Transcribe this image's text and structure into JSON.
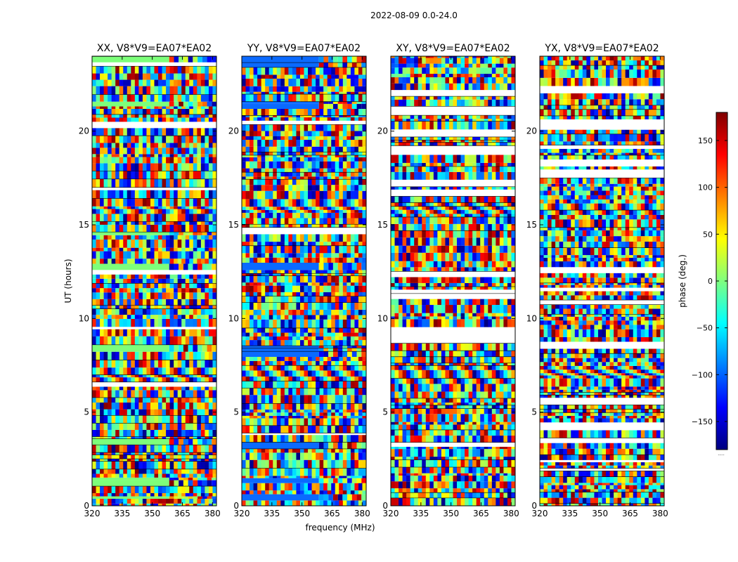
{
  "figure": {
    "suptitle": "2022-08-09 0.0-24.0",
    "xlabel": "frequency (MHz)",
    "ylabel": "UT (hours)"
  },
  "colorbar": {
    "label": "phase (deg.)",
    "range": [
      -180,
      180
    ],
    "ticks": [
      150,
      100,
      50,
      0,
      -50,
      -100,
      -150
    ],
    "tick_labels": [
      "150",
      "100",
      "50",
      "0",
      "−50",
      "−100",
      "−150"
    ],
    "footer": "....."
  },
  "chart_data": [
    {
      "type": "heatmap",
      "title": "XX, V8*V9=EA07*EA02",
      "xlim": [
        320,
        382
      ],
      "ylim": [
        0,
        24
      ],
      "xticks": [
        320,
        335,
        350,
        365,
        380
      ],
      "xtick_labels": [
        "320",
        "335",
        "350",
        "365",
        "380"
      ],
      "yticks": [
        0,
        5,
        10,
        15,
        20
      ],
      "ytick_labels": [
        "0",
        "5",
        "10",
        "15",
        "20"
      ],
      "value": "phase (deg.)",
      "colormap": "jet",
      "clim": [
        -180,
        180
      ],
      "calibrated_rows_hours": [
        [
          23.3,
          24
        ],
        [
          21.3,
          21.7
        ],
        [
          14.4,
          14.8
        ],
        [
          12.5,
          12.9
        ],
        [
          8.1,
          8.5
        ],
        [
          3.2,
          3.5
        ],
        [
          1.1,
          1.5
        ],
        [
          0.3,
          0.5
        ]
      ],
      "fringe_bands_hours": [
        [
          15.6,
          16.2
        ],
        [
          6.6,
          7.5
        ]
      ]
    },
    {
      "type": "heatmap",
      "title": "YY, V8*V9=EA07*EA02",
      "xlim": [
        320,
        382
      ],
      "ylim": [
        0,
        24
      ],
      "xticks": [
        320,
        335,
        350,
        365,
        380
      ],
      "xtick_labels": [
        "320",
        "335",
        "350",
        "365",
        "380"
      ],
      "yticks": [
        0,
        5,
        10,
        15,
        20
      ],
      "ytick_labels": [
        "0",
        "5",
        "10",
        "15",
        "20"
      ],
      "value": "phase (deg.)",
      "colormap": "jet",
      "clim": [
        -180,
        180
      ],
      "calibrated_rows_hours": [
        [
          23.3,
          24
        ],
        [
          21.3,
          21.7
        ],
        [
          14.4,
          14.8
        ],
        [
          12.5,
          12.9
        ],
        [
          8.1,
          8.5
        ],
        [
          3.2,
          3.5
        ],
        [
          1.1,
          1.5
        ],
        [
          0.3,
          0.5
        ]
      ],
      "fringe_bands_hours": [
        [
          15.6,
          16.2
        ],
        [
          6.6,
          7.5
        ]
      ]
    },
    {
      "type": "heatmap",
      "title": "XY, V8*V9=EA07*EA02",
      "xlim": [
        320,
        382
      ],
      "ylim": [
        0,
        24
      ],
      "xticks": [
        320,
        335,
        350,
        365,
        380
      ],
      "xtick_labels": [
        "320",
        "335",
        "350",
        "365",
        "380"
      ],
      "yticks": [
        0,
        5,
        10,
        15,
        20
      ],
      "ytick_labels": [
        "0",
        "5",
        "10",
        "15",
        "20"
      ],
      "value": "phase (deg.)",
      "colormap": "jet",
      "clim": [
        -180,
        180
      ],
      "calibrated_rows_hours": [],
      "fringe_bands_hours": [
        [
          15.6,
          16.2
        ],
        [
          6.6,
          7.5
        ]
      ]
    },
    {
      "type": "heatmap",
      "title": "YX, V8*V9=EA07*EA02",
      "xlim": [
        320,
        382
      ],
      "ylim": [
        0,
        24
      ],
      "xticks": [
        320,
        335,
        350,
        365,
        380
      ],
      "xtick_labels": [
        "320",
        "335",
        "350",
        "365",
        "380"
      ],
      "yticks": [
        0,
        5,
        10,
        15,
        20
      ],
      "ytick_labels": [
        "0",
        "5",
        "10",
        "15",
        "20"
      ],
      "value": "phase (deg.)",
      "colormap": "jet",
      "clim": [
        -180,
        180
      ],
      "calibrated_rows_hours": [],
      "fringe_bands_hours": [
        [
          15.6,
          16.2
        ],
        [
          6.6,
          7.5
        ]
      ]
    }
  ],
  "colors": {
    "gap": "#ffffff",
    "divider": "#000000",
    "calibrated": "#7dff7a",
    "calibrated_yy": "#0a6aff"
  }
}
